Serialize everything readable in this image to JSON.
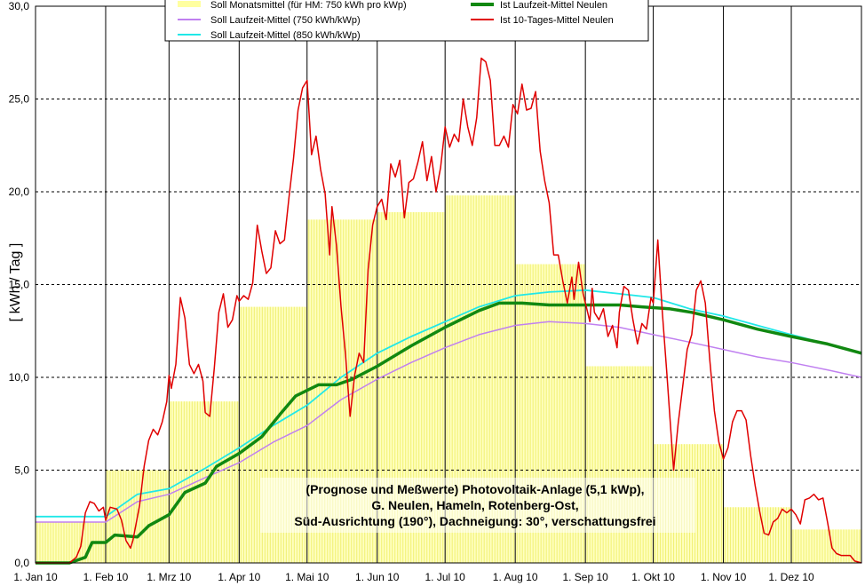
{
  "chart_data": {
    "type": "line",
    "ylabel": "[ kWh / Tag ]",
    "ylim": [
      0,
      30
    ],
    "y_ticks": [
      "0,0",
      "5,0",
      "10,0",
      "15,0",
      "20,0",
      "25,0",
      "30,0"
    ],
    "x_ticks": [
      "1. Jan 10",
      "1. Feb 10",
      "1. Mrz 10",
      "1. Apr 10",
      "1. Mai 10",
      "1. Jun 10",
      "1. Jul 10",
      "1. Aug 10",
      "1. Sep 10",
      "1. Okt 10",
      "1. Nov 10",
      "1. Dez 10"
    ],
    "x_day_of_month_start": [
      0,
      31,
      59,
      90,
      120,
      151,
      181,
      212,
      243,
      273,
      304,
      334
    ],
    "xlim_days": [
      0,
      365
    ],
    "grid": "vertical solid, horizontal dashed",
    "legend_position": "top",
    "annotation_lines": [
      "(Prognose und Meßwerte)  Photovoltaik-Anlage (5,1 kWp),",
      "G. Neulen, Hameln, Rotenberg-Ost,",
      "Süd-Ausrichtung (190°), Dachneigung: 30°, verschattungsfrei"
    ],
    "bars": {
      "name": "Soll Monatsmittel (für HM: 750 kWh pro kWp)",
      "color": "#ffffc0",
      "values": [
        2.2,
        5.0,
        8.7,
        13.8,
        18.5,
        18.9,
        19.8,
        16.1,
        10.6,
        6.4,
        3.0,
        1.8
      ]
    },
    "series": [
      {
        "name": "Soll Laufzeit-Mittel (750 kWh/kWp)",
        "color": "#c080f0",
        "width": 1.5,
        "points": [
          [
            0,
            2.2
          ],
          [
            31,
            2.2
          ],
          [
            45,
            3.3
          ],
          [
            59,
            3.7
          ],
          [
            75,
            4.6
          ],
          [
            90,
            5.4
          ],
          [
            105,
            6.5
          ],
          [
            120,
            7.4
          ],
          [
            135,
            8.8
          ],
          [
            151,
            9.9
          ],
          [
            166,
            10.8
          ],
          [
            181,
            11.6
          ],
          [
            196,
            12.3
          ],
          [
            212,
            12.8
          ],
          [
            227,
            13.0
          ],
          [
            243,
            12.9
          ],
          [
            258,
            12.7
          ],
          [
            273,
            12.3
          ],
          [
            289,
            11.9
          ],
          [
            304,
            11.5
          ],
          [
            319,
            11.1
          ],
          [
            334,
            10.8
          ],
          [
            350,
            10.4
          ],
          [
            365,
            10.0
          ]
        ]
      },
      {
        "name": "Soll Laufzeit-Mittel (850 kWh/kWp)",
        "color": "#20e8e8",
        "width": 1.8,
        "points": [
          [
            0,
            2.5
          ],
          [
            31,
            2.5
          ],
          [
            45,
            3.7
          ],
          [
            59,
            4.0
          ],
          [
            75,
            5.1
          ],
          [
            90,
            6.2
          ],
          [
            105,
            7.4
          ],
          [
            120,
            8.5
          ],
          [
            135,
            10.0
          ],
          [
            151,
            11.3
          ],
          [
            166,
            12.2
          ],
          [
            181,
            13.0
          ],
          [
            196,
            13.8
          ],
          [
            212,
            14.4
          ],
          [
            227,
            14.6
          ],
          [
            243,
            14.7
          ],
          [
            258,
            14.5
          ],
          [
            273,
            14.3
          ],
          [
            289,
            13.7
          ],
          [
            304,
            13.3
          ],
          [
            319,
            12.8
          ],
          [
            334,
            12.3
          ],
          [
            350,
            11.8
          ],
          [
            365,
            11.3
          ]
        ]
      },
      {
        "name": "Ist Laufzeit-Mittel Neulen",
        "color": "#118811",
        "width": 3.5,
        "points": [
          [
            0,
            0
          ],
          [
            15,
            0
          ],
          [
            22,
            0.3
          ],
          [
            25,
            1.1
          ],
          [
            31,
            1.1
          ],
          [
            35,
            1.5
          ],
          [
            45,
            1.4
          ],
          [
            50,
            2.0
          ],
          [
            59,
            2.6
          ],
          [
            66,
            3.8
          ],
          [
            75,
            4.3
          ],
          [
            80,
            5.2
          ],
          [
            90,
            5.9
          ],
          [
            100,
            6.8
          ],
          [
            108,
            8.0
          ],
          [
            115,
            9.0
          ],
          [
            125,
            9.6
          ],
          [
            133,
            9.6
          ],
          [
            140,
            9.9
          ],
          [
            151,
            10.6
          ],
          [
            166,
            11.7
          ],
          [
            181,
            12.7
          ],
          [
            196,
            13.6
          ],
          [
            205,
            14.0
          ],
          [
            215,
            14.0
          ],
          [
            227,
            13.9
          ],
          [
            243,
            13.9
          ],
          [
            258,
            13.9
          ],
          [
            268,
            13.8
          ],
          [
            280,
            13.7
          ],
          [
            290,
            13.5
          ],
          [
            304,
            13.1
          ],
          [
            319,
            12.6
          ],
          [
            334,
            12.2
          ],
          [
            350,
            11.8
          ],
          [
            365,
            11.3
          ]
        ]
      },
      {
        "name": "Ist 10-Tages-Mittel Neulen",
        "color": "#e00000",
        "width": 1.5,
        "points": [
          [
            0,
            0
          ],
          [
            15,
            0
          ],
          [
            18,
            0.3
          ],
          [
            20,
            0.9
          ],
          [
            22,
            2.7
          ],
          [
            24,
            3.3
          ],
          [
            26,
            3.2
          ],
          [
            28,
            2.8
          ],
          [
            30,
            3.0
          ],
          [
            31,
            2.3
          ],
          [
            33,
            3.0
          ],
          [
            36,
            2.9
          ],
          [
            38,
            2.3
          ],
          [
            40,
            1.2
          ],
          [
            42,
            0.8
          ],
          [
            43,
            1.2
          ],
          [
            46,
            3.1
          ],
          [
            48,
            5.2
          ],
          [
            50,
            6.6
          ],
          [
            52,
            7.2
          ],
          [
            54,
            6.9
          ],
          [
            56,
            7.6
          ],
          [
            58,
            8.7
          ],
          [
            59,
            10.1
          ],
          [
            60,
            9.4
          ],
          [
            62,
            10.7
          ],
          [
            64,
            14.3
          ],
          [
            66,
            13.2
          ],
          [
            68,
            10.7
          ],
          [
            70,
            10.2
          ],
          [
            72,
            10.7
          ],
          [
            74,
            9.8
          ],
          [
            75,
            8.1
          ],
          [
            77,
            7.9
          ],
          [
            79,
            10.5
          ],
          [
            81,
            13.5
          ],
          [
            83,
            14.5
          ],
          [
            85,
            12.7
          ],
          [
            87,
            13.1
          ],
          [
            89,
            14.4
          ],
          [
            90,
            14.1
          ],
          [
            92,
            14.4
          ],
          [
            94,
            14.2
          ],
          [
            96,
            15.1
          ],
          [
            98,
            18.2
          ],
          [
            100,
            16.8
          ],
          [
            102,
            15.6
          ],
          [
            104,
            15.9
          ],
          [
            106,
            17.9
          ],
          [
            108,
            17.2
          ],
          [
            110,
            17.4
          ],
          [
            112,
            19.7
          ],
          [
            114,
            21.8
          ],
          [
            116,
            24.4
          ],
          [
            118,
            25.6
          ],
          [
            120,
            26.0
          ],
          [
            122,
            22.0
          ],
          [
            124,
            23.0
          ],
          [
            126,
            21.2
          ],
          [
            128,
            19.9
          ],
          [
            130,
            16.6
          ],
          [
            131,
            19.2
          ],
          [
            133,
            17.1
          ],
          [
            135,
            13.8
          ],
          [
            137,
            11.2
          ],
          [
            139,
            7.9
          ],
          [
            141,
            10.1
          ],
          [
            143,
            11.3
          ],
          [
            145,
            10.8
          ],
          [
            147,
            15.8
          ],
          [
            149,
            18.2
          ],
          [
            151,
            19.2
          ],
          [
            153,
            19.6
          ],
          [
            155,
            18.5
          ],
          [
            157,
            21.5
          ],
          [
            159,
            20.8
          ],
          [
            161,
            21.7
          ],
          [
            163,
            18.6
          ],
          [
            165,
            20.5
          ],
          [
            167,
            20.7
          ],
          [
            169,
            21.6
          ],
          [
            171,
            22.7
          ],
          [
            173,
            20.6
          ],
          [
            175,
            21.9
          ],
          [
            177,
            20.0
          ],
          [
            179,
            21.3
          ],
          [
            181,
            23.5
          ],
          [
            183,
            22.4
          ],
          [
            185,
            23.1
          ],
          [
            187,
            22.7
          ],
          [
            189,
            25.0
          ],
          [
            191,
            23.5
          ],
          [
            193,
            22.5
          ],
          [
            195,
            24.0
          ],
          [
            197,
            27.2
          ],
          [
            199,
            27.0
          ],
          [
            201,
            26.0
          ],
          [
            203,
            22.5
          ],
          [
            205,
            22.5
          ],
          [
            207,
            23.0
          ],
          [
            209,
            22.4
          ],
          [
            211,
            24.7
          ],
          [
            213,
            24.2
          ],
          [
            215,
            25.8
          ],
          [
            217,
            24.4
          ],
          [
            219,
            24.5
          ],
          [
            221,
            25.4
          ],
          [
            223,
            22.2
          ],
          [
            225,
            20.6
          ],
          [
            227,
            19.4
          ],
          [
            229,
            16.6
          ],
          [
            231,
            16.6
          ],
          [
            233,
            15.2
          ],
          [
            235,
            14.0
          ],
          [
            237,
            15.4
          ],
          [
            238,
            14.2
          ],
          [
            240,
            16.2
          ],
          [
            242,
            14.5
          ],
          [
            243,
            14.0
          ],
          [
            245,
            13.0
          ],
          [
            246,
            14.8
          ],
          [
            247,
            13.5
          ],
          [
            249,
            13.1
          ],
          [
            251,
            13.7
          ],
          [
            253,
            12.2
          ],
          [
            255,
            12.8
          ],
          [
            257,
            11.6
          ],
          [
            258,
            13.5
          ],
          [
            260,
            14.9
          ],
          [
            262,
            14.7
          ],
          [
            264,
            13.1
          ],
          [
            266,
            11.8
          ],
          [
            268,
            12.9
          ],
          [
            270,
            12.6
          ],
          [
            272,
            14.3
          ],
          [
            273,
            14.0
          ],
          [
            275,
            17.4
          ],
          [
            277,
            13.5
          ],
          [
            279,
            10.2
          ],
          [
            281,
            6.7
          ],
          [
            282,
            5.0
          ],
          [
            284,
            7.5
          ],
          [
            286,
            9.5
          ],
          [
            288,
            11.5
          ],
          [
            290,
            12.3
          ],
          [
            292,
            14.7
          ],
          [
            294,
            15.2
          ],
          [
            296,
            14.0
          ],
          [
            298,
            10.9
          ],
          [
            300,
            8.2
          ],
          [
            302,
            6.5
          ],
          [
            304,
            5.6
          ],
          [
            306,
            6.2
          ],
          [
            308,
            7.6
          ],
          [
            310,
            8.2
          ],
          [
            312,
            8.2
          ],
          [
            314,
            7.7
          ],
          [
            316,
            5.8
          ],
          [
            318,
            4.2
          ],
          [
            320,
            2.8
          ],
          [
            322,
            1.6
          ],
          [
            324,
            1.5
          ],
          [
            326,
            2.2
          ],
          [
            328,
            2.4
          ],
          [
            330,
            2.9
          ],
          [
            332,
            2.7
          ],
          [
            334,
            2.9
          ],
          [
            336,
            2.6
          ],
          [
            338,
            2.1
          ],
          [
            340,
            3.4
          ],
          [
            342,
            3.5
          ],
          [
            344,
            3.7
          ],
          [
            346,
            3.4
          ],
          [
            348,
            3.5
          ],
          [
            350,
            2.2
          ],
          [
            352,
            0.8
          ],
          [
            354,
            0.5
          ],
          [
            356,
            0.4
          ],
          [
            358,
            0.4
          ],
          [
            360,
            0.4
          ],
          [
            362,
            0.1
          ],
          [
            365,
            0
          ]
        ]
      }
    ]
  }
}
